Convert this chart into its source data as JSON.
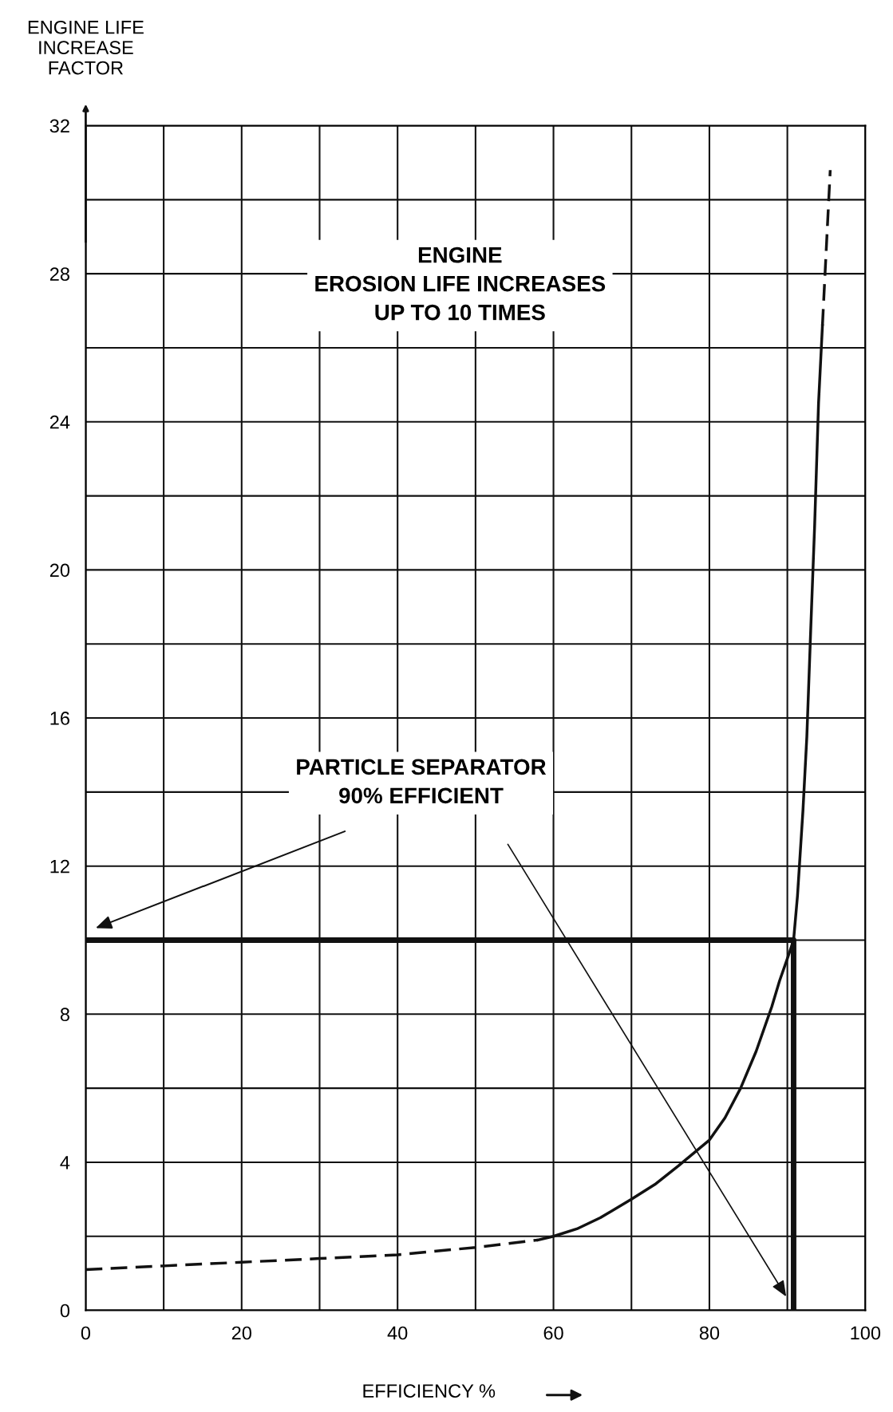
{
  "chart_data": {
    "type": "line",
    "xlabel": "EFFICIENCY %",
    "ylabel": "ENGINE LIFE\nINCREASE\nFACTOR",
    "xlim": [
      0,
      100
    ],
    "ylim": [
      0,
      32
    ],
    "xticks": [
      0,
      {
        "value": 10,
        "label": null
      },
      20,
      {
        "value": 30,
        "label": null
      },
      40,
      {
        "value": 50,
        "label": null
      },
      60,
      {
        "value": 70,
        "label": null
      },
      80,
      {
        "value": 90,
        "label": null
      },
      100
    ],
    "yticks": [
      0,
      {
        "value": 2,
        "label": null
      },
      4,
      {
        "value": 6,
        "label": null
      },
      8,
      {
        "value": 10,
        "label": null
      },
      12,
      {
        "value": 14,
        "label": null
      },
      16,
      {
        "value": 18,
        "label": null
      },
      20,
      {
        "value": 22,
        "label": null
      },
      24,
      {
        "value": 26,
        "label": null
      },
      28,
      {
        "value": 30,
        "label": null
      },
      32
    ],
    "grid": true,
    "series": [
      {
        "color": "#111111",
        "line_style": "dashed",
        "x": [
          0,
          10,
          20,
          30,
          40,
          50,
          58
        ],
        "values": [
          1.1,
          1.2,
          1.3,
          1.4,
          1.5,
          1.7,
          1.9
        ]
      },
      {
        "color": "#111111",
        "line_style": "solid",
        "x": [
          58,
          60,
          63,
          66,
          70,
          73,
          76,
          80,
          82,
          84,
          86,
          88,
          89,
          90,
          90.8,
          91.3,
          92,
          92.5,
          93,
          93.5,
          94,
          94.5
        ],
        "values": [
          1.9,
          2.0,
          2.2,
          2.5,
          3.0,
          3.4,
          3.9,
          4.6,
          5.2,
          6.0,
          7.0,
          8.2,
          8.9,
          9.5,
          10,
          11.2,
          13.5,
          15.5,
          18.4,
          21.2,
          24.5,
          26.6
        ]
      },
      {
        "color": "#111111",
        "line_style": "dashed",
        "x": [
          94.5,
          95.5
        ],
        "values": [
          26.6,
          30.8
        ]
      },
      {
        "color": "#111111",
        "line_style": "solid",
        "x": [
          0,
          90.8,
          90.8
        ],
        "values": [
          10,
          10,
          0
        ]
      }
    ],
    "annotations": [
      "ENGINE\nEROSION LIFE INCREASES\nUP TO 10 TIMES",
      "PARTICLE SEPARATOR\n90% EFFICIENT"
    ]
  }
}
